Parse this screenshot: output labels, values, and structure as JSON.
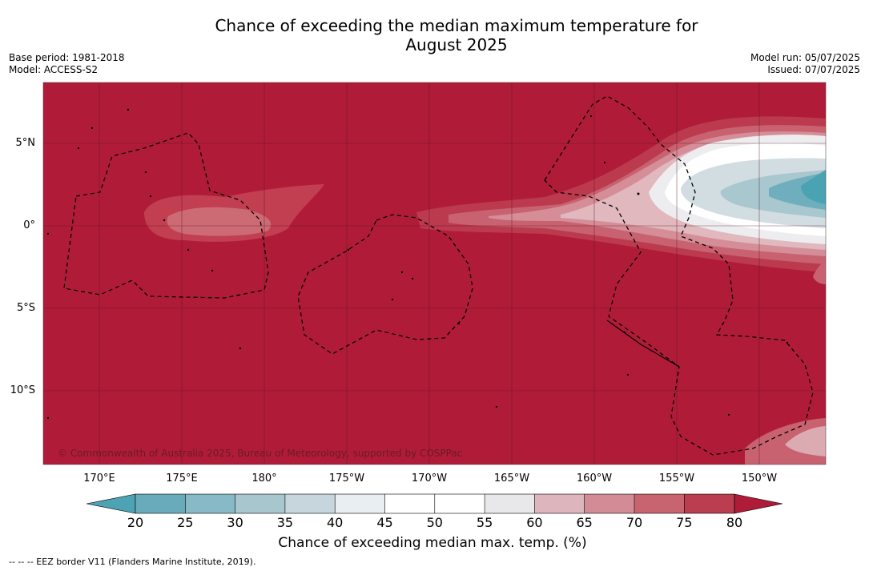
{
  "title": {
    "line1": "Chance of exceeding the median maximum temperature for",
    "line2": "August 2025"
  },
  "meta": {
    "base_period": "Base period: 1981-2018",
    "model": "Model: ACCESS-S2",
    "model_run": "Model run: 05/07/2025",
    "issued": "Issued: 07/07/2025"
  },
  "map": {
    "credit": "© Commonwealth of Australia 2025, Bureau of Meteorology, supported by COSPPac",
    "lat_labels": [
      "5°N",
      "0°",
      "5°S",
      "10°S"
    ],
    "lon_labels": [
      "170°E",
      "175°E",
      "180°",
      "175°W",
      "170°W",
      "165°W",
      "160°W",
      "155°W",
      "150°W"
    ],
    "background_color": "#b01c38"
  },
  "colorbar": {
    "ticks": [
      "20",
      "25",
      "30",
      "35",
      "40",
      "45",
      "50",
      "55",
      "60",
      "65",
      "70",
      "75",
      "80"
    ],
    "colors": [
      "#4da3b4",
      "#6aabbb",
      "#88b9c6",
      "#a8c6cd",
      "#c7d6dc",
      "#e8eef1",
      "#ffffff",
      "#ffffff",
      "#e8e8ea",
      "#ddb5bc",
      "#d38c95",
      "#c76470",
      "#ba3e50",
      "#b01c38"
    ],
    "label": "Chance of exceeding median max. temp. (%)"
  },
  "footer": {
    "legend": "--  --  -- EEZ border V11 (Flanders Marine Institute, 2019)."
  }
}
